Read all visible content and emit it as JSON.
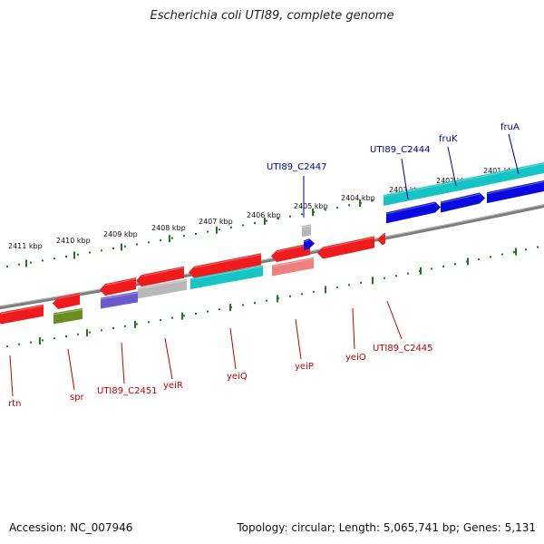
{
  "title": "Escherichia coli UTI89, complete genome",
  "footer": {
    "accession": "Accession: NC_007946",
    "summary": "Topology: circular; Length: 5,065,741 bp; Genes: 5,131"
  },
  "colors": {
    "backbone": "#7d7d7d",
    "ticks": "#1f7a1f",
    "tick_label": "#111111",
    "forward_label": "#00008b",
    "reverse_label": "#c00000",
    "gene_red": "#ee1c1c",
    "gene_cyan": "#17c4c4",
    "gene_blue": "#0a0ae0",
    "gene_grey": "#b8b8b8",
    "gene_olive": "#6b8e23",
    "gene_purple": "#6a5acd",
    "gene_pink": "#ee8080"
  },
  "scale_labels": [
    "2411 kbp",
    "2410 kbp",
    "2409 kbp",
    "2408 kbp",
    "2407 kbp",
    "2406 kbp",
    "2405 kbp",
    "2404 kbp",
    "2403 kbp",
    "2402 kbp",
    "2401 kbp"
  ],
  "forward_gene_labels": [
    "UTI89_C2447",
    "UTI89_C2444",
    "fruK",
    "fruA"
  ],
  "reverse_gene_labels": [
    "rtn",
    "spr",
    "UTI89_C2451",
    "yeiR",
    "yeiQ",
    "yeiP",
    "yeiO",
    "UTI89_C2445"
  ]
}
